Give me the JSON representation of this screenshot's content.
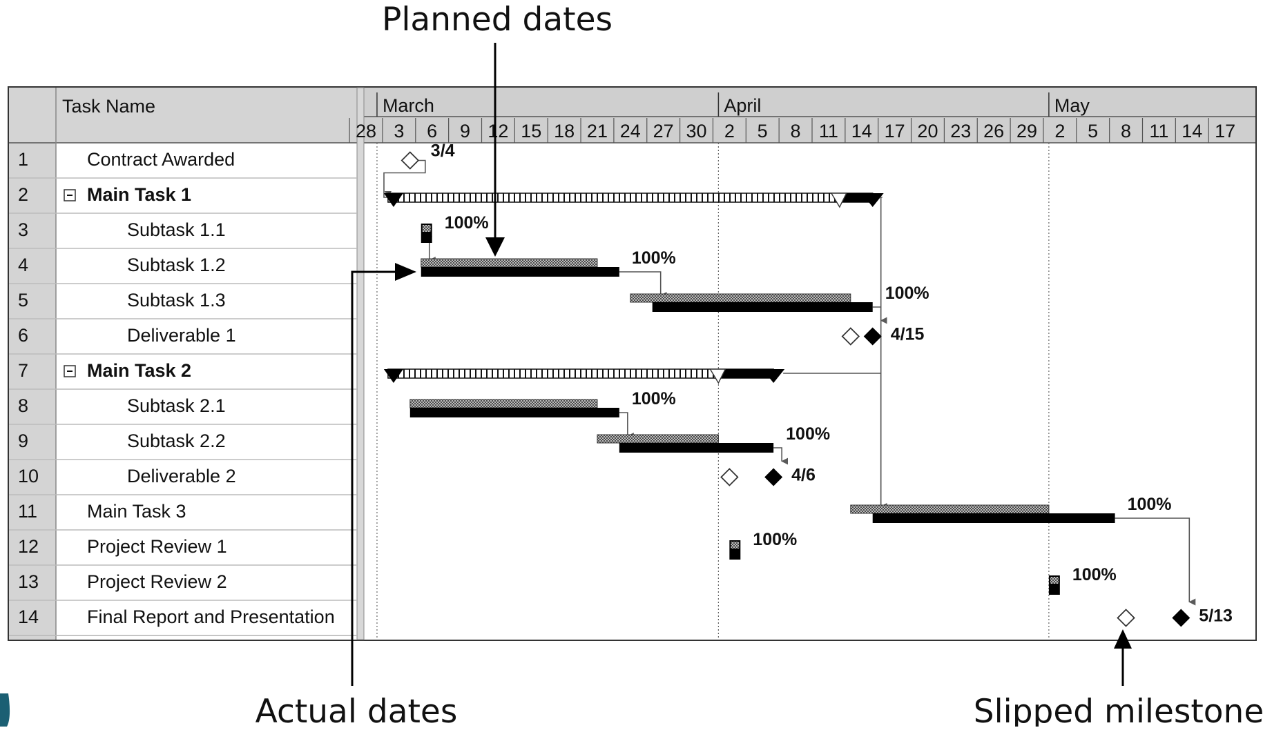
{
  "callouts": {
    "planned": "Planned dates",
    "actual": "Actual dates",
    "slipped": "Slipped milestone"
  },
  "table": {
    "header": "Task Name",
    "rows": [
      {
        "id": "1",
        "name": "Contract Awarded",
        "indent": 1,
        "bold": false,
        "summary": false
      },
      {
        "id": "2",
        "name": "Main Task 1",
        "indent": 0,
        "bold": true,
        "summary": true
      },
      {
        "id": "3",
        "name": "Subtask 1.1",
        "indent": 2,
        "bold": false,
        "summary": false
      },
      {
        "id": "4",
        "name": "Subtask 1.2",
        "indent": 2,
        "bold": false,
        "summary": false
      },
      {
        "id": "5",
        "name": "Subtask 1.3",
        "indent": 2,
        "bold": false,
        "summary": false
      },
      {
        "id": "6",
        "name": "Deliverable 1",
        "indent": 2,
        "bold": false,
        "summary": false
      },
      {
        "id": "7",
        "name": "Main Task 2",
        "indent": 0,
        "bold": true,
        "summary": true
      },
      {
        "id": "8",
        "name": "Subtask 2.1",
        "indent": 2,
        "bold": false,
        "summary": false
      },
      {
        "id": "9",
        "name": "Subtask 2.2",
        "indent": 2,
        "bold": false,
        "summary": false
      },
      {
        "id": "10",
        "name": "Deliverable 2",
        "indent": 2,
        "bold": false,
        "summary": false
      },
      {
        "id": "11",
        "name": "Main Task 3",
        "indent": 1,
        "bold": false,
        "summary": false
      },
      {
        "id": "12",
        "name": "Project Review 1",
        "indent": 1,
        "bold": false,
        "summary": false
      },
      {
        "id": "13",
        "name": "Project Review 2",
        "indent": 1,
        "bold": false,
        "summary": false
      },
      {
        "id": "14",
        "name": "Final Report and Presentation",
        "indent": 1,
        "bold": false,
        "summary": false
      }
    ]
  },
  "chart_data": {
    "type": "gantt",
    "timescale": {
      "months": [
        {
          "label": "March",
          "start": "2003-03-01"
        },
        {
          "label": "April",
          "start": "2003-04-01"
        },
        {
          "label": "May",
          "start": "2003-05-01"
        }
      ],
      "ticks": [
        "2003-02-28",
        "2003-03-03",
        "2003-03-06",
        "2003-03-09",
        "2003-03-12",
        "2003-03-15",
        "2003-03-18",
        "2003-03-21",
        "2003-03-24",
        "2003-03-27",
        "2003-03-30",
        "2003-04-02",
        "2003-04-05",
        "2003-04-08",
        "2003-04-11",
        "2003-04-14",
        "2003-04-17",
        "2003-04-20",
        "2003-04-23",
        "2003-04-26",
        "2003-04-29",
        "2003-05-02",
        "2003-05-05",
        "2003-05-08",
        "2003-05-11",
        "2003-05-14",
        "2003-05-17"
      ],
      "tick_labels": [
        "28",
        "3",
        "6",
        "9",
        "12",
        "15",
        "18",
        "21",
        "24",
        "27",
        "30",
        "2",
        "5",
        "8",
        "11",
        "14",
        "17",
        "20",
        "23",
        "26",
        "29",
        "2",
        "5",
        "8",
        "11",
        "14",
        "17"
      ],
      "range": [
        "2003-02-28",
        "2003-05-18"
      ]
    },
    "tasks": [
      {
        "row": 1,
        "kind": "milestone",
        "planned": "2003-03-04",
        "label": "3/4"
      },
      {
        "row": 2,
        "kind": "summary",
        "actual_start": "2003-03-02",
        "actual_end": "2003-04-15",
        "planned_end": "2003-04-12"
      },
      {
        "row": 3,
        "kind": "task",
        "actual_start": "2003-03-05",
        "actual_end": "2003-03-06",
        "label": "100%"
      },
      {
        "row": 4,
        "kind": "task",
        "planned_start": "2003-03-05",
        "planned_end": "2003-03-21",
        "actual_start": "2003-03-05",
        "actual_end": "2003-03-23",
        "label": "100%"
      },
      {
        "row": 5,
        "kind": "task",
        "planned_start": "2003-03-24",
        "planned_end": "2003-04-13",
        "actual_start": "2003-03-26",
        "actual_end": "2003-04-15",
        "label": "100%"
      },
      {
        "row": 6,
        "kind": "milestone",
        "planned": "2003-04-13",
        "actual": "2003-04-15",
        "label": "4/15"
      },
      {
        "row": 7,
        "kind": "summary",
        "actual_start": "2003-03-02",
        "actual_end": "2003-04-06",
        "planned_end": "2003-04-01"
      },
      {
        "row": 8,
        "kind": "task",
        "planned_start": "2003-03-04",
        "planned_end": "2003-03-21",
        "actual_start": "2003-03-04",
        "actual_end": "2003-03-23",
        "label": "100%"
      },
      {
        "row": 9,
        "kind": "task",
        "planned_start": "2003-03-21",
        "planned_end": "2003-04-01",
        "actual_start": "2003-03-23",
        "actual_end": "2003-04-06",
        "label": "100%"
      },
      {
        "row": 10,
        "kind": "milestone",
        "planned": "2003-04-02",
        "actual": "2003-04-06",
        "label": "4/6"
      },
      {
        "row": 11,
        "kind": "task",
        "planned_start": "2003-04-13",
        "planned_end": "2003-05-01",
        "actual_start": "2003-04-15",
        "actual_end": "2003-05-07",
        "label": "100%"
      },
      {
        "row": 12,
        "kind": "task",
        "actual_start": "2003-04-02",
        "actual_end": "2003-04-03",
        "label": "100%"
      },
      {
        "row": 13,
        "kind": "task",
        "actual_start": "2003-05-01",
        "actual_end": "2003-05-02",
        "label": "100%"
      },
      {
        "row": 14,
        "kind": "milestone",
        "planned": "2003-05-08",
        "actual": "2003-05-13",
        "label": "5/13"
      }
    ],
    "links": [
      {
        "from": 1,
        "to": 2
      },
      {
        "from": 3,
        "to": 4
      },
      {
        "from": 4,
        "to": 5
      },
      {
        "from": 5,
        "to": 6
      },
      {
        "from": 8,
        "to": 9
      },
      {
        "from": 9,
        "to": 10
      },
      {
        "from": 2,
        "to": 11
      },
      {
        "from": 7,
        "to": 11
      },
      {
        "from": 11,
        "to": 14
      }
    ],
    "colors": {
      "actual": "#000000",
      "planned": "#8a8a8a",
      "header": "#cfcfcf",
      "grid": "#a8a8a8"
    }
  }
}
